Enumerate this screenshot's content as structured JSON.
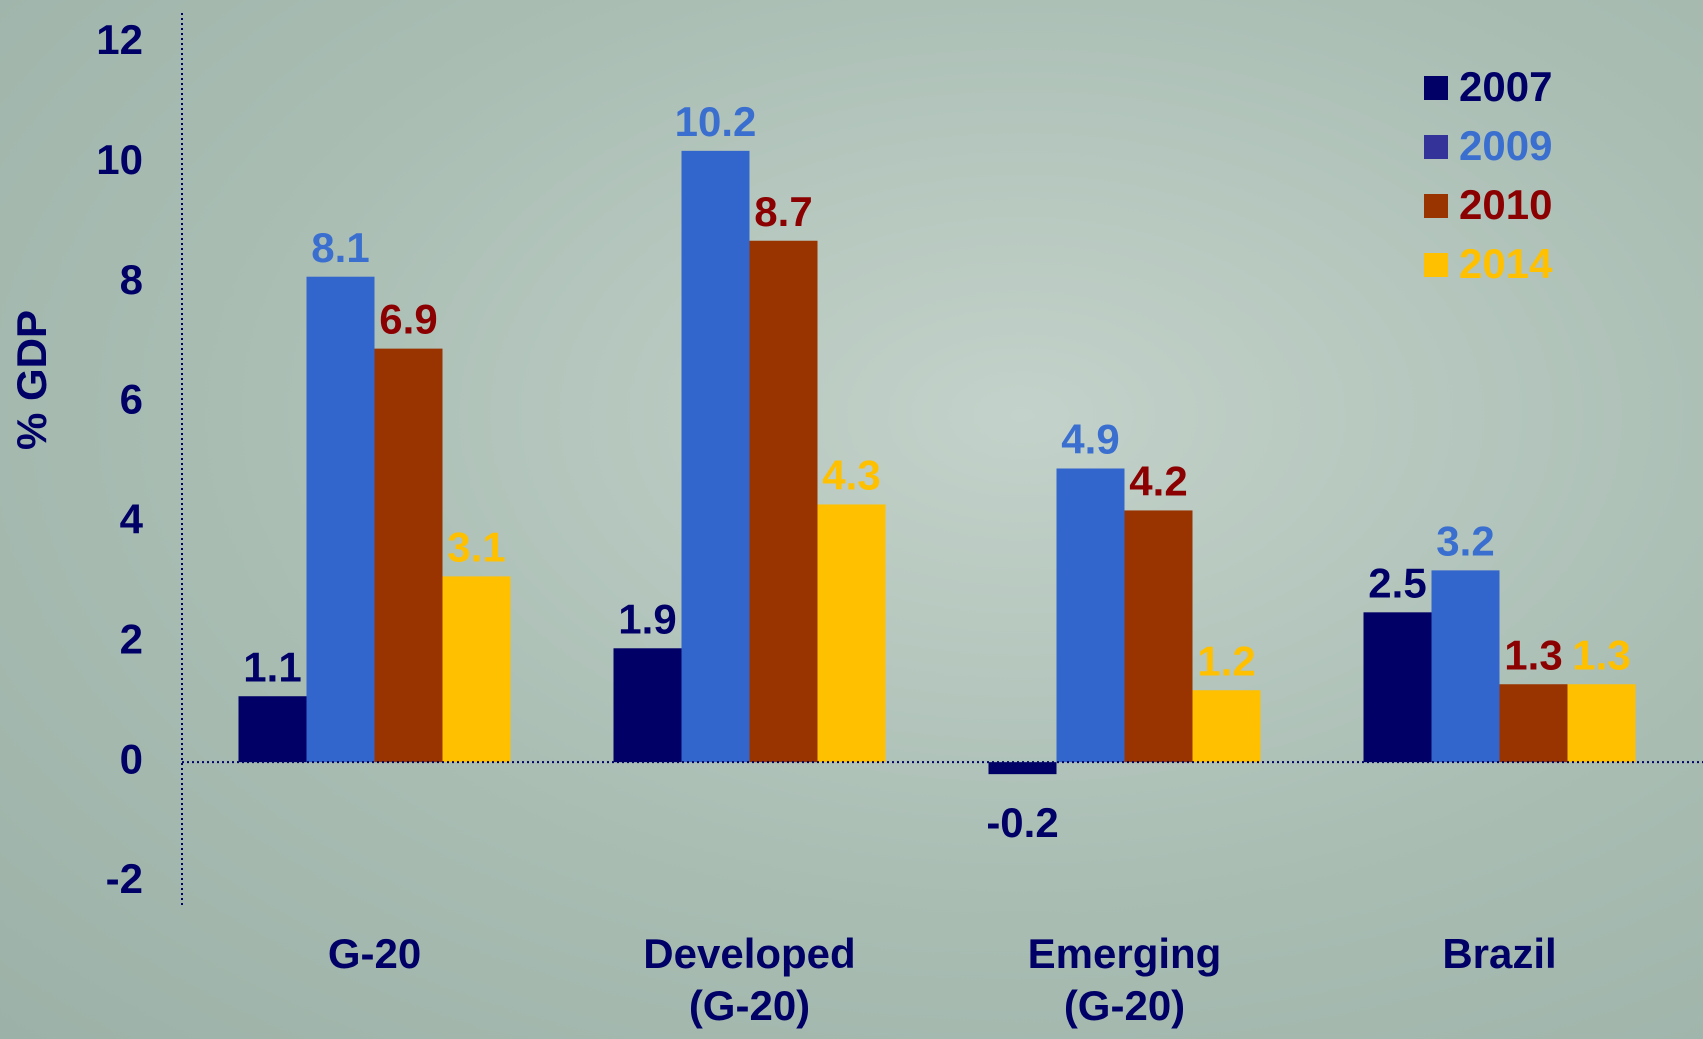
{
  "chart_data": {
    "type": "bar",
    "y_label": "% GDP",
    "categories": [
      "G-20",
      "Developed (G-20)",
      "Emerging (G-20)",
      "Brazil"
    ],
    "series": [
      {
        "name": "2007",
        "color": "#000066",
        "values": [
          1.1,
          1.9,
          -0.2,
          2.5
        ]
      },
      {
        "name": "2009",
        "color": "#3366cc",
        "values": [
          8.1,
          10.2,
          4.9,
          3.2
        ]
      },
      {
        "name": "2010",
        "color": "#993300",
        "values": [
          6.9,
          8.7,
          4.2,
          1.3
        ]
      },
      {
        "name": "2014",
        "color": "#ffc000",
        "values": [
          3.1,
          4.3,
          1.2,
          1.3
        ]
      }
    ],
    "ylim": [
      -2.4,
      12.5
    ],
    "yticks": [
      -2,
      0,
      2,
      4,
      6,
      8,
      10,
      12
    ],
    "legend": "top-right"
  }
}
